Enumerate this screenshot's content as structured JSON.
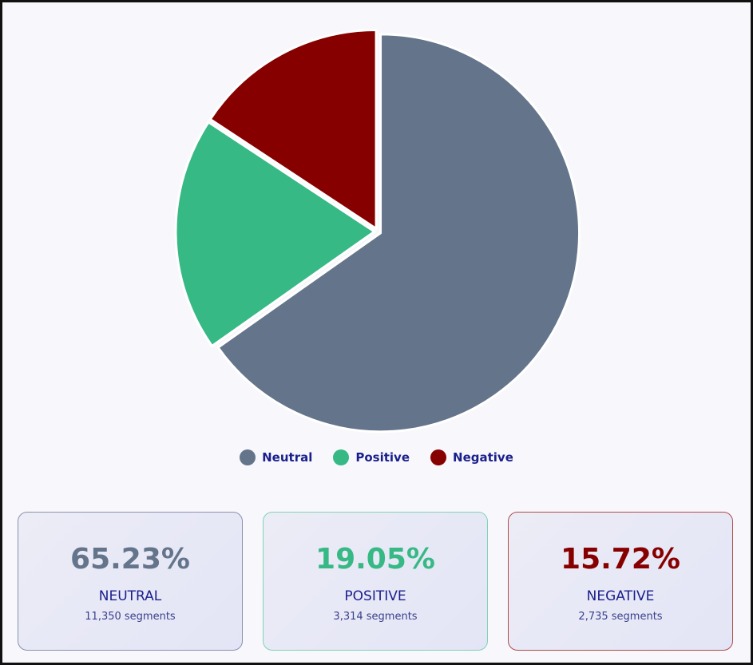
{
  "chart_data": {
    "type": "pie",
    "slices": [
      {
        "label": "Neutral",
        "value": 65.23,
        "color": "#64748b"
      },
      {
        "label": "Positive",
        "value": 19.05,
        "color": "#36b985"
      },
      {
        "label": "Negative",
        "value": 15.72,
        "color": "#870000"
      }
    ],
    "legend_position": "bottom",
    "start_angle": "12 o'clock, clockwise"
  },
  "legend": [
    {
      "label": "Neutral",
      "color": "#64748b"
    },
    {
      "label": "Positive",
      "color": "#36b985"
    },
    {
      "label": "Negative",
      "color": "#870000"
    }
  ],
  "cards": [
    {
      "percent": "65.23%",
      "name": "NEUTRAL",
      "segments": "11,350 segments",
      "color": "#64748b",
      "border": "#8a90b0"
    },
    {
      "percent": "19.05%",
      "name": "POSITIVE",
      "segments": "3,314 segments",
      "color": "#36b985",
      "border": "#7fd3b3"
    },
    {
      "percent": "15.72%",
      "name": "NEGATIVE",
      "segments": "2,735 segments",
      "color": "#870000",
      "border": "#b04a4a"
    }
  ]
}
